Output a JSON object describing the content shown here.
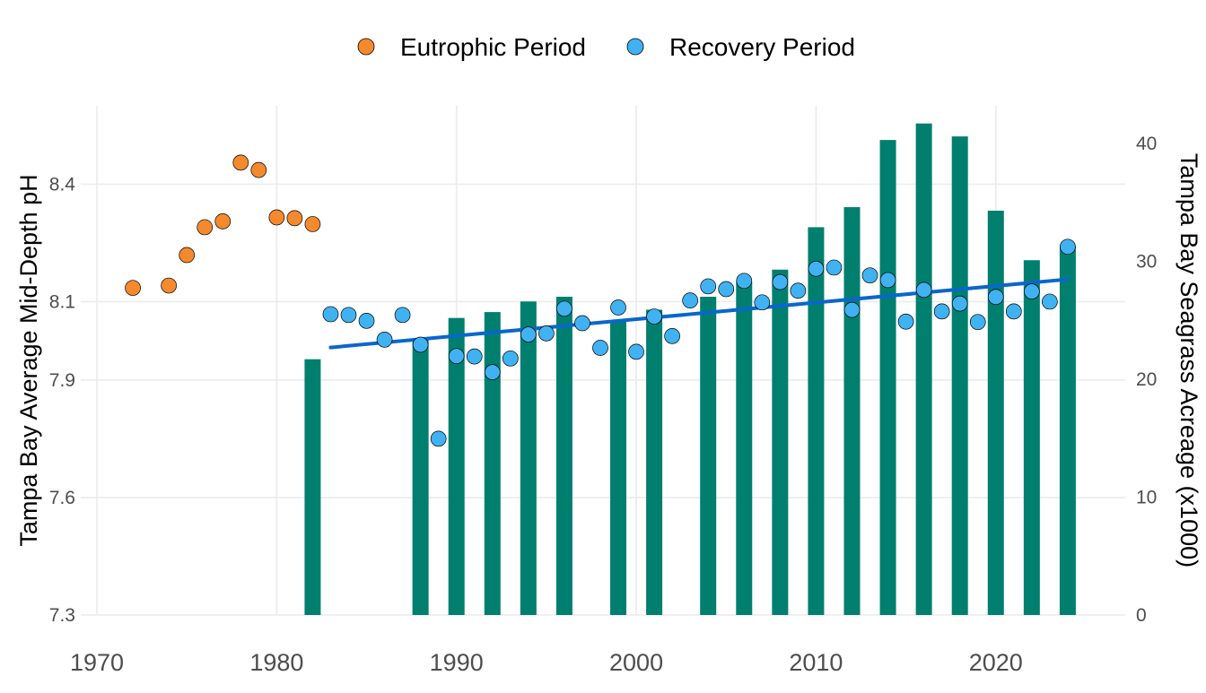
{
  "chart_data": {
    "type": "bar+scatter",
    "x_axis": {
      "range": [
        1970,
        2027
      ],
      "ticks": [
        1970,
        1980,
        1990,
        2000,
        2010,
        2020
      ]
    },
    "y_left": {
      "label": "Tampa Bay Average Mid-Depth pH",
      "range": [
        7.3,
        8.6
      ],
      "ticks": [
        "7.3",
        "7.6",
        "7.9",
        "8.1",
        "8.4"
      ]
    },
    "y_right": {
      "label": "Tampa Bay Seagrass Acreage (x1000)",
      "range": [
        0,
        43.2
      ],
      "ticks": [
        "0",
        "10",
        "20",
        "30",
        "40"
      ]
    },
    "grid": true,
    "legend": {
      "position": "top",
      "entries": [
        {
          "label": "Eutrophic Period",
          "color": "#f5892e"
        },
        {
          "label": "Recovery Period",
          "color": "#40b2f2"
        }
      ]
    },
    "bars": {
      "color": "#007f6e",
      "axis": "right",
      "x": [
        1982,
        1988,
        1990,
        1992,
        1994,
        1996,
        1999,
        2001,
        2004,
        2006,
        2008,
        2010,
        2012,
        2014,
        2016,
        2018,
        2020,
        2022,
        2024
      ],
      "values": [
        21.7,
        23.5,
        25.2,
        25.7,
        26.6,
        27.0,
        25.0,
        25.9,
        27.0,
        28.3,
        29.3,
        32.9,
        34.6,
        40.3,
        41.7,
        40.6,
        34.3,
        30.1,
        31.3
      ]
    },
    "points": {
      "axis": "left",
      "series": [
        {
          "name": "Eutrophic Period",
          "color": "#f5892e",
          "x": [
            1972,
            1974,
            1975,
            1976,
            1977,
            1978,
            1979,
            1980,
            1981,
            1982
          ],
          "y": [
            8.135,
            8.141,
            8.219,
            8.29,
            8.305,
            8.455,
            8.436,
            8.315,
            8.313,
            8.298
          ]
        },
        {
          "name": "Recovery Period",
          "color": "#40b2f2",
          "x": [
            1983,
            1984,
            1985,
            1986,
            1987,
            1988,
            1989,
            1990,
            1991,
            1992,
            1993,
            1994,
            1995,
            1996,
            1997,
            1998,
            1999,
            2000,
            2001,
            2002,
            2003,
            2004,
            2005,
            2006,
            2007,
            2008,
            2009,
            2010,
            2011,
            2012,
            2013,
            2014,
            2015,
            2016,
            2017,
            2018,
            2019,
            2020,
            2021,
            2022,
            2023,
            2024
          ],
          "y": [
            8.068,
            8.066,
            8.051,
            8.003,
            8.066,
            7.99,
            7.75,
            7.961,
            7.96,
            7.92,
            7.955,
            8.016,
            8.019,
            8.082,
            8.045,
            7.982,
            8.085,
            7.972,
            8.062,
            8.012,
            8.103,
            8.139,
            8.132,
            8.153,
            8.098,
            8.15,
            8.128,
            8.184,
            8.187,
            8.079,
            8.167,
            8.155,
            8.049,
            8.13,
            8.075,
            8.095,
            8.048,
            8.112,
            8.075,
            8.126,
            8.1,
            8.24
          ]
        }
      ]
    },
    "trend_line": {
      "color": "#0a66cc",
      "axis": "left",
      "x": [
        1983,
        2024
      ],
      "y": [
        7.983,
        8.157
      ]
    }
  }
}
